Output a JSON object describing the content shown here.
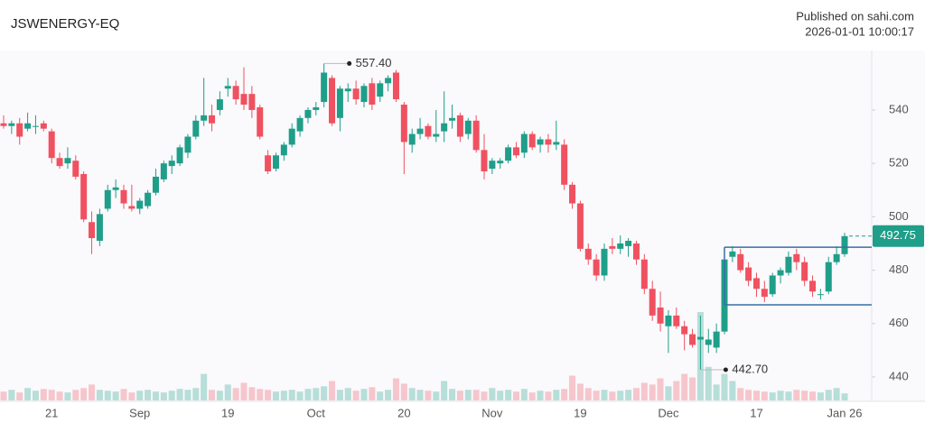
{
  "chart_data": {
    "type": "candlestick",
    "title": "JSWENERGY-EQ",
    "publisher": "Published on sahi.com",
    "timestamp": "2026-01-01 10:00:17",
    "categories": [
      null,
      null,
      null,
      null,
      null,
      null,
      "21",
      null,
      null,
      null,
      null,
      null,
      null,
      null,
      null,
      null,
      null,
      "Sep",
      null,
      null,
      null,
      null,
      null,
      null,
      null,
      null,
      null,
      null,
      "19",
      null,
      null,
      null,
      null,
      null,
      null,
      null,
      null,
      null,
      null,
      "Oct",
      null,
      null,
      null,
      null,
      null,
      null,
      null,
      null,
      null,
      null,
      "20",
      null,
      null,
      null,
      null,
      null,
      null,
      null,
      null,
      null,
      null,
      "Nov",
      null,
      null,
      null,
      null,
      null,
      null,
      null,
      null,
      null,
      null,
      "19",
      null,
      null,
      null,
      null,
      null,
      null,
      null,
      null,
      null,
      null,
      "Dec",
      null,
      null,
      null,
      null,
      null,
      null,
      null,
      null,
      null,
      null,
      "17",
      null,
      null,
      null,
      null,
      null,
      null,
      null,
      null,
      null,
      null,
      "Jan 26"
    ],
    "open": [
      535,
      534,
      535,
      533,
      534,
      535,
      532,
      522,
      520,
      521,
      516,
      498,
      491,
      503,
      510,
      510,
      504,
      503,
      504,
      509,
      514,
      519,
      520,
      524,
      530,
      536,
      538,
      540,
      548,
      549,
      546,
      546,
      541,
      523,
      518,
      523,
      527,
      532,
      537,
      540,
      543,
      552,
      537,
      547,
      548,
      543,
      550,
      545,
      550,
      554,
      542,
      527,
      531,
      534,
      530,
      532,
      536,
      538,
      531,
      536,
      525,
      518,
      520,
      521,
      526,
      524,
      531,
      527,
      529,
      527,
      527,
      512,
      505,
      488,
      484,
      478,
      489,
      488,
      489,
      490,
      484,
      473,
      466,
      459,
      463,
      459,
      456,
      454,
      452,
      451,
      457,
      485,
      486,
      481,
      477,
      473,
      471,
      478,
      479,
      486,
      483,
      476,
      471,
      472,
      483,
      486
    ],
    "high": [
      538,
      536,
      537,
      539,
      538,
      536,
      533,
      524,
      526,
      523,
      517,
      502,
      503,
      512,
      514,
      512,
      512,
      507,
      510,
      518,
      521,
      523,
      527,
      531,
      538,
      552,
      542,
      547,
      552,
      551,
      556,
      549,
      542,
      525,
      524,
      528,
      535,
      538,
      541,
      543,
      557.4,
      553,
      549,
      550,
      551,
      550,
      552,
      551,
      553,
      555,
      543,
      533,
      537,
      535,
      540,
      547,
      542,
      539,
      537,
      538,
      531,
      522,
      522,
      527,
      528,
      532,
      532,
      530,
      531,
      536,
      529,
      513,
      506,
      490,
      486,
      490,
      492,
      493,
      492,
      491,
      486,
      476,
      472,
      465,
      466,
      461,
      458,
      463,
      458,
      460,
      485,
      489,
      488,
      483,
      479,
      476,
      479,
      481,
      487,
      488,
      485,
      478,
      473,
      485,
      489,
      494
    ],
    "low": [
      533,
      531,
      527,
      532,
      531,
      532,
      520,
      518,
      518,
      514,
      498,
      486,
      489,
      502,
      507,
      503,
      502,
      501,
      503,
      508,
      513,
      516,
      519,
      522,
      529,
      534,
      532,
      538,
      545,
      542,
      540,
      537,
      529,
      516,
      517,
      521,
      526,
      530,
      535,
      538,
      541,
      534,
      532,
      543,
      542,
      541,
      540,
      543,
      547,
      543,
      516,
      524,
      529,
      529,
      528,
      528,
      533,
      528,
      529,
      524,
      514,
      516,
      518,
      520,
      522,
      522,
      525,
      524,
      524,
      525,
      510,
      503,
      487,
      482,
      476,
      476,
      486,
      486,
      485,
      482,
      471,
      461,
      457,
      449,
      458,
      450,
      451,
      442.7,
      449,
      449,
      456,
      483,
      479,
      474,
      470,
      468,
      470,
      475,
      478,
      480,
      474,
      470,
      469,
      471,
      482,
      485
    ],
    "close": [
      534,
      535,
      530,
      535,
      534,
      533,
      522,
      519,
      522,
      515,
      499,
      492,
      501,
      510,
      511,
      505,
      503,
      506,
      509,
      515,
      520,
      521,
      526,
      530,
      536,
      538,
      535,
      544,
      549,
      544,
      542,
      540,
      530,
      517,
      523,
      527,
      533,
      537,
      540,
      541,
      554,
      535,
      548,
      548,
      544,
      549,
      542,
      550,
      552,
      544,
      528,
      531,
      533,
      530,
      531,
      535,
      537,
      530,
      536,
      525,
      517,
      521,
      521,
      526,
      523,
      531,
      526,
      529,
      527,
      528,
      512,
      505,
      488,
      484,
      478,
      488,
      488,
      490,
      491,
      484,
      473,
      463,
      460,
      463,
      459,
      456,
      452,
      455,
      454,
      457,
      484,
      487,
      480,
      476,
      473,
      470,
      478,
      480,
      485,
      483,
      476,
      472,
      471,
      483,
      486,
      492.75
    ],
    "volume": [
      10,
      12,
      9,
      14,
      11,
      13,
      12,
      10,
      9,
      12,
      14,
      18,
      12,
      11,
      10,
      13,
      9,
      11,
      12,
      10,
      9,
      11,
      13,
      12,
      14,
      30,
      12,
      11,
      18,
      14,
      20,
      15,
      13,
      12,
      10,
      11,
      12,
      10,
      13,
      14,
      16,
      22,
      12,
      14,
      11,
      13,
      15,
      10,
      12,
      25,
      19,
      14,
      12,
      11,
      10,
      22,
      13,
      11,
      12,
      12,
      10,
      14,
      11,
      12,
      10,
      13,
      9,
      11,
      10,
      12,
      13,
      28,
      19,
      14,
      11,
      12,
      10,
      11,
      12,
      14,
      20,
      18,
      25,
      16,
      22,
      30,
      26,
      100,
      38,
      18,
      30,
      22,
      14,
      12,
      11,
      10,
      9,
      11,
      10,
      12,
      11,
      10,
      9,
      12,
      14,
      8
    ],
    "up_color": "#1f9e89",
    "down_color": "#ef5160",
    "ylim": [
      431.2,
      561.6
    ],
    "yticks": [
      440,
      460,
      480,
      500,
      520,
      540
    ],
    "annotations": {
      "high": {
        "value": 557.4,
        "label": "557.40"
      },
      "low": {
        "value": 442.7,
        "label": "442.70"
      },
      "last": {
        "value": 492.75,
        "label": "492.75"
      }
    },
    "range_box": {
      "high": 488.6,
      "low": 467.0,
      "color": "#3a6ea5"
    }
  }
}
